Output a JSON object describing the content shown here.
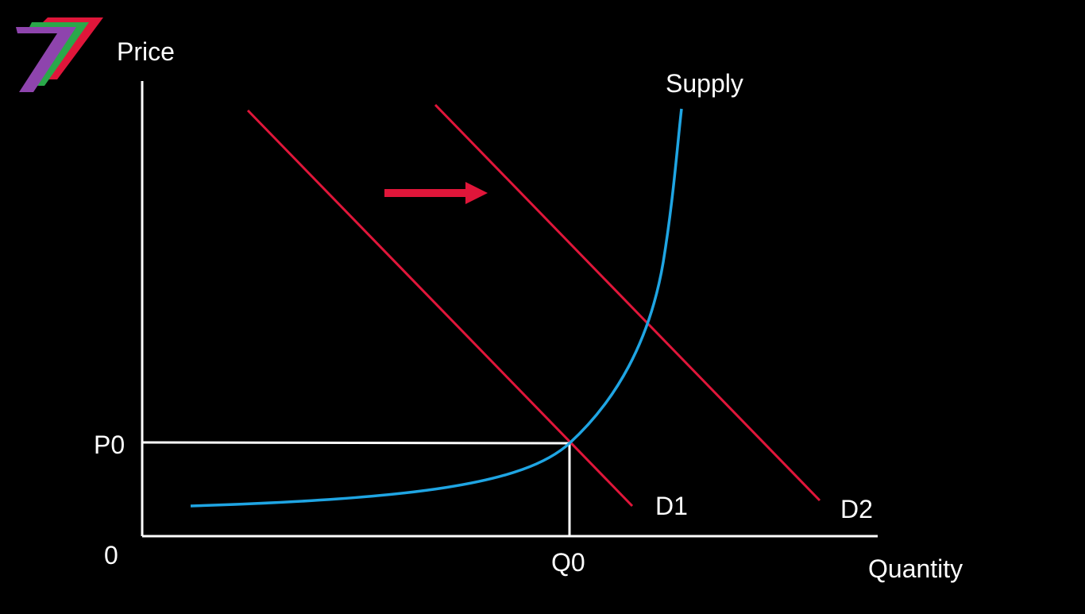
{
  "colors": {
    "background": "#000000",
    "axis": "#ffffff",
    "demand": "#e0163a",
    "supply": "#1fa5e3",
    "arrow": "#e0163a",
    "logo": [
      "#e0163a",
      "#2aa84a",
      "#8e44ad"
    ]
  },
  "logo": {
    "icon": "stacked-seven-logo-icon"
  },
  "axes": {
    "y_label": "Price",
    "x_label": "Quantity",
    "origin_label": "0"
  },
  "equilibrium": {
    "price_label": "P0",
    "quantity_label": "Q0"
  },
  "curves": {
    "supply_label": "Supply",
    "demand_initial_label": "D1",
    "demand_shifted_label": "D2"
  },
  "shift_arrow": {
    "icon": "right-arrow-icon",
    "direction": "right"
  }
}
